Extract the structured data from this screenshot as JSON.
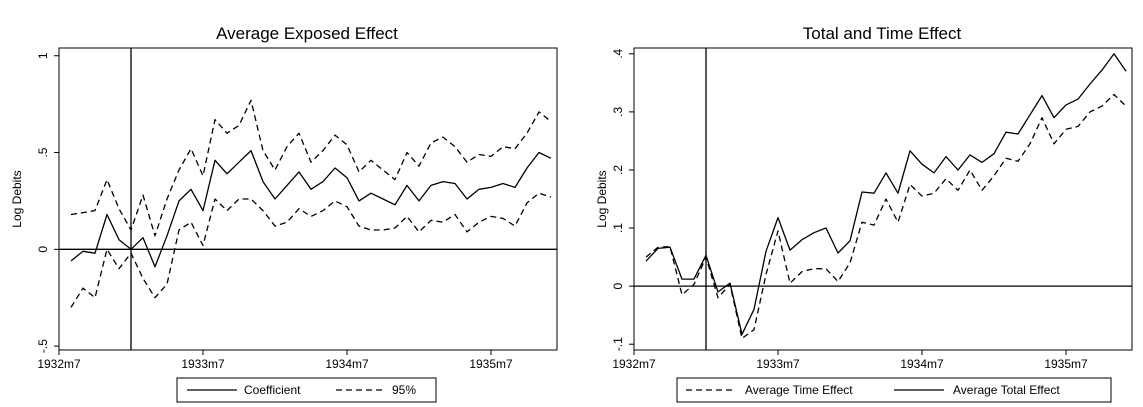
{
  "chart_data": [
    {
      "type": "line",
      "title": "Average Exposed Effect",
      "xlabel": "",
      "ylabel": "Log Debits",
      "ylim": [
        -0.52,
        1.04
      ],
      "x_range": [
        0,
        41.5
      ],
      "x_ticks": [
        {
          "label": "1932m7",
          "value": 0
        },
        {
          "label": "1933m7",
          "value": 12
        },
        {
          "label": "1934m7",
          "value": 24
        },
        {
          "label": "1935m7",
          "value": 36
        }
      ],
      "y_ticks": [
        {
          "label": "-.5",
          "value": -0.5
        },
        {
          "label": "0",
          "value": 0
        },
        {
          "label": ".5",
          "value": 0.5
        },
        {
          "label": "1",
          "value": 1
        }
      ],
      "vline_x": 6,
      "hline_y": 0,
      "x": [
        1,
        2,
        3,
        4,
        5,
        6,
        7,
        8,
        9,
        10,
        11,
        12,
        13,
        14,
        15,
        16,
        17,
        18,
        19,
        20,
        21,
        22,
        23,
        24,
        25,
        26,
        27,
        28,
        29,
        30,
        31,
        32,
        33,
        34,
        35,
        36,
        37,
        38,
        39,
        40,
        41
      ],
      "series": [
        {
          "name": "Coefficient",
          "dash": "solid",
          "values": [
            -0.06,
            -0.01,
            -0.02,
            0.18,
            0.05,
            0.0,
            0.06,
            -0.09,
            0.07,
            0.25,
            0.31,
            0.2,
            0.46,
            0.39,
            0.45,
            0.51,
            0.35,
            0.26,
            0.33,
            0.4,
            0.31,
            0.35,
            0.42,
            0.37,
            0.25,
            0.29,
            0.26,
            0.23,
            0.33,
            0.25,
            0.33,
            0.35,
            0.34,
            0.26,
            0.31,
            0.32,
            0.34,
            0.32,
            0.42,
            0.5,
            0.47
          ]
        },
        {
          "name": "95%",
          "dash": "dash",
          "values": [
            0.18,
            0.19,
            0.2,
            0.36,
            0.21,
            0.1,
            0.28,
            0.07,
            0.26,
            0.41,
            0.52,
            0.38,
            0.67,
            0.6,
            0.64,
            0.77,
            0.51,
            0.41,
            0.53,
            0.6,
            0.45,
            0.51,
            0.59,
            0.54,
            0.4,
            0.46,
            0.41,
            0.36,
            0.5,
            0.43,
            0.55,
            0.58,
            0.53,
            0.45,
            0.49,
            0.48,
            0.53,
            0.52,
            0.6,
            0.71,
            0.66
          ]
        },
        {
          "name": "",
          "dash": "dash",
          "values": [
            -0.3,
            -0.2,
            -0.25,
            0.0,
            -0.1,
            -0.02,
            -0.15,
            -0.25,
            -0.18,
            0.1,
            0.14,
            0.02,
            0.26,
            0.2,
            0.26,
            0.26,
            0.2,
            0.12,
            0.14,
            0.21,
            0.17,
            0.2,
            0.25,
            0.22,
            0.12,
            0.1,
            0.1,
            0.11,
            0.17,
            0.09,
            0.15,
            0.14,
            0.18,
            0.09,
            0.14,
            0.17,
            0.16,
            0.12,
            0.24,
            0.29,
            0.27
          ]
        }
      ],
      "legend": {
        "position": "bottom",
        "entries": [
          {
            "label": "Coefficient",
            "dash": "solid"
          },
          {
            "label": "95%",
            "dash": "dash"
          }
        ]
      }
    },
    {
      "type": "line",
      "title": "Total and Time Effect",
      "xlabel": "",
      "ylabel": "Log Debits",
      "ylim": [
        -0.11,
        0.41
      ],
      "x_range": [
        0,
        41.5
      ],
      "x_ticks": [
        {
          "label": "1932m7",
          "value": 0
        },
        {
          "label": "1933m7",
          "value": 12
        },
        {
          "label": "1934m7",
          "value": 24
        },
        {
          "label": "1935m7",
          "value": 36
        }
      ],
      "y_ticks": [
        {
          "label": "-.1",
          "value": -0.1
        },
        {
          "label": "0",
          "value": 0
        },
        {
          "label": ".1",
          "value": 0.1
        },
        {
          "label": ".2",
          "value": 0.2
        },
        {
          "label": ".3",
          "value": 0.3
        },
        {
          "label": ".4",
          "value": 0.4
        }
      ],
      "vline_x": 6,
      "hline_y": 0,
      "x": [
        1,
        2,
        3,
        4,
        5,
        6,
        7,
        8,
        9,
        10,
        11,
        12,
        13,
        14,
        15,
        16,
        17,
        18,
        19,
        20,
        21,
        22,
        23,
        24,
        25,
        26,
        27,
        28,
        29,
        30,
        31,
        32,
        33,
        34,
        35,
        36,
        37,
        38,
        39,
        40,
        41
      ],
      "series": [
        {
          "name": "Average Time Effect",
          "dash": "dash",
          "values": [
            0.05,
            0.067,
            0.068,
            -0.015,
            0.003,
            0.05,
            -0.02,
            0.003,
            -0.09,
            -0.075,
            0.02,
            0.095,
            0.005,
            0.025,
            0.03,
            0.03,
            0.008,
            0.04,
            0.11,
            0.105,
            0.15,
            0.11,
            0.175,
            0.155,
            0.16,
            0.185,
            0.165,
            0.2,
            0.165,
            0.19,
            0.22,
            0.215,
            0.245,
            0.29,
            0.245,
            0.27,
            0.275,
            0.3,
            0.31,
            0.33,
            0.31
          ]
        },
        {
          "name": "Average Total Effect",
          "dash": "solid",
          "values": [
            0.043,
            0.065,
            0.067,
            0.012,
            0.012,
            0.053,
            -0.01,
            0.005,
            -0.083,
            -0.04,
            0.06,
            0.118,
            0.062,
            0.08,
            0.092,
            0.1,
            0.057,
            0.078,
            0.162,
            0.16,
            0.195,
            0.16,
            0.233,
            0.21,
            0.195,
            0.223,
            0.2,
            0.226,
            0.213,
            0.228,
            0.265,
            0.262,
            0.295,
            0.328,
            0.29,
            0.312,
            0.322,
            0.348,
            0.372,
            0.4,
            0.37
          ]
        }
      ],
      "legend": {
        "position": "bottom",
        "entries": [
          {
            "label": "Average Time Effect",
            "dash": "dash"
          },
          {
            "label": "Average Total Effect",
            "dash": "solid"
          }
        ]
      }
    }
  ]
}
